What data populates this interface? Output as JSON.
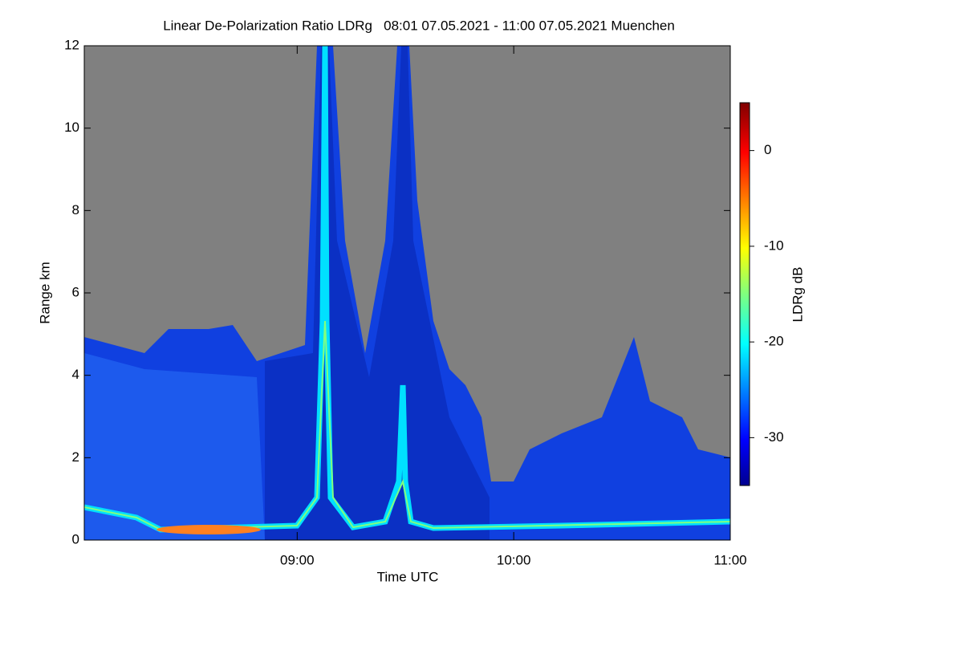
{
  "chart_data": {
    "type": "heatmap",
    "title": "Linear De-Polarization Ratio LDRg   08:01 07.05.2021 - 11:00 07.05.2021 Muenchen",
    "x_label": "Time UTC",
    "y_label": "Range km",
    "xlim": [
      8.0167,
      11.0
    ],
    "xticks": [
      {
        "value": 9,
        "label": "09:00"
      },
      {
        "value": 10,
        "label": "10:00"
      },
      {
        "value": 11,
        "label": "11:00"
      }
    ],
    "ylim": [
      0,
      12
    ],
    "yticks": [
      0,
      2,
      4,
      6,
      8,
      10,
      12
    ],
    "colorbar": {
      "label": "LDRg dB",
      "lim": [
        -35,
        5
      ],
      "ticks": [
        0,
        -10,
        -20,
        -30
      ]
    }
  }
}
